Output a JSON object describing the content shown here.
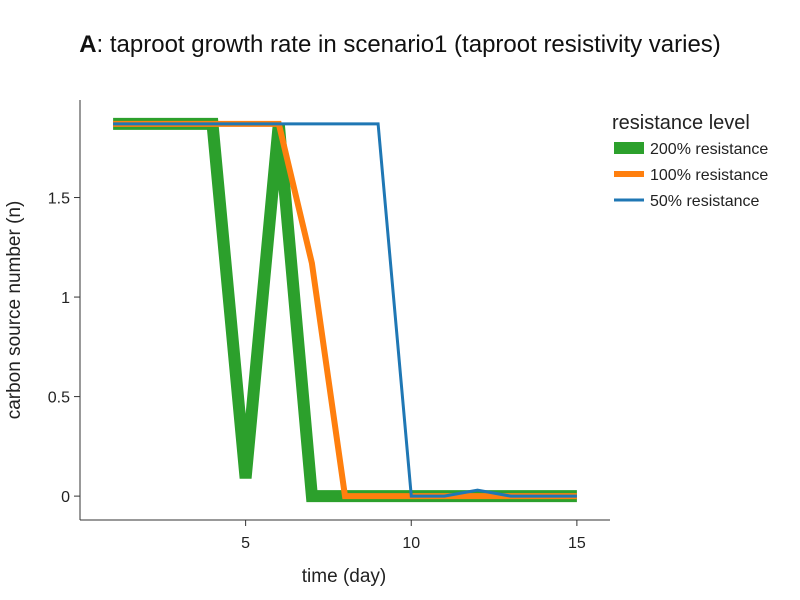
{
  "chart_data": {
    "type": "line",
    "title_prefix": "A",
    "title_rest": ": taproot growth rate in scenario1 (taproot resistivity varies)",
    "xlabel": "time (day)",
    "ylabel": "carbon source number (n)",
    "xlim": [
      0,
      16
    ],
    "ylim": [
      -0.12,
      1.99
    ],
    "xticks": [
      5,
      10,
      15
    ],
    "xtick_labels": [
      "5",
      "10",
      "15"
    ],
    "yticks": [
      0,
      0.5,
      1,
      1.5
    ],
    "ytick_labels": [
      "0",
      "0.5",
      "1",
      "1.5"
    ],
    "grid": false,
    "legend_title": "resistance level",
    "legend_position": "top-right",
    "series": [
      {
        "name": "200% resistance",
        "color": "#2ca02c",
        "x": [
          1,
          2,
          3,
          4,
          5,
          6,
          7,
          8,
          9,
          10,
          11,
          12,
          13,
          14,
          15
        ],
        "y": [
          1.87,
          1.87,
          1.87,
          1.87,
          0.09,
          1.87,
          0,
          0,
          0,
          0,
          0,
          0,
          0,
          0,
          0
        ]
      },
      {
        "name": "100% resistance",
        "color": "#ff7f0e",
        "x": [
          1,
          2,
          3,
          4,
          5,
          6,
          7,
          8,
          9,
          10,
          11,
          12,
          13,
          14,
          15
        ],
        "y": [
          1.87,
          1.87,
          1.87,
          1.87,
          1.87,
          1.87,
          1.17,
          0,
          0,
          0,
          0,
          0,
          0,
          0,
          0
        ]
      },
      {
        "name": "50% resistance",
        "color": "#1f77b4",
        "x": [
          1,
          2,
          3,
          4,
          5,
          6,
          7,
          8,
          9,
          10,
          11,
          12,
          13,
          14,
          15
        ],
        "y": [
          1.87,
          1.87,
          1.87,
          1.87,
          1.87,
          1.87,
          1.87,
          1.87,
          1.87,
          0,
          0,
          0.03,
          0,
          0,
          0
        ]
      }
    ]
  }
}
